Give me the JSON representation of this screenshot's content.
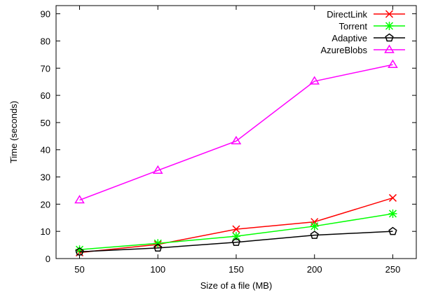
{
  "chart_data": {
    "type": "line",
    "xlabel": "Size of a file (MB)",
    "ylabel": "Time (seconds)",
    "x": [
      50,
      100,
      150,
      200,
      250
    ],
    "xticks": [
      50,
      100,
      150,
      200,
      250
    ],
    "xlim": [
      35,
      265
    ],
    "yticks": [
      0,
      10,
      20,
      30,
      40,
      50,
      60,
      70,
      80,
      90
    ],
    "ylim": [
      0,
      93
    ],
    "grid": false,
    "legend_position": "top-right",
    "series": [
      {
        "name": "DirectLink",
        "color": "#ff0000",
        "marker": "x",
        "values": [
          2.2,
          5.2,
          10.8,
          13.5,
          22.3
        ]
      },
      {
        "name": "Torrent",
        "color": "#00ff00",
        "marker": "asterisk",
        "values": [
          3.3,
          5.6,
          8.2,
          11.9,
          16.5
        ]
      },
      {
        "name": "Adaptive",
        "color": "#000000",
        "marker": "pentagon",
        "values": [
          2.5,
          3.9,
          6.0,
          8.6,
          10.0
        ]
      },
      {
        "name": "AzureBlobs",
        "color": "#ff00ff",
        "marker": "triangle",
        "values": [
          21.5,
          32.4,
          43.2,
          65.2,
          71.3
        ]
      }
    ]
  }
}
